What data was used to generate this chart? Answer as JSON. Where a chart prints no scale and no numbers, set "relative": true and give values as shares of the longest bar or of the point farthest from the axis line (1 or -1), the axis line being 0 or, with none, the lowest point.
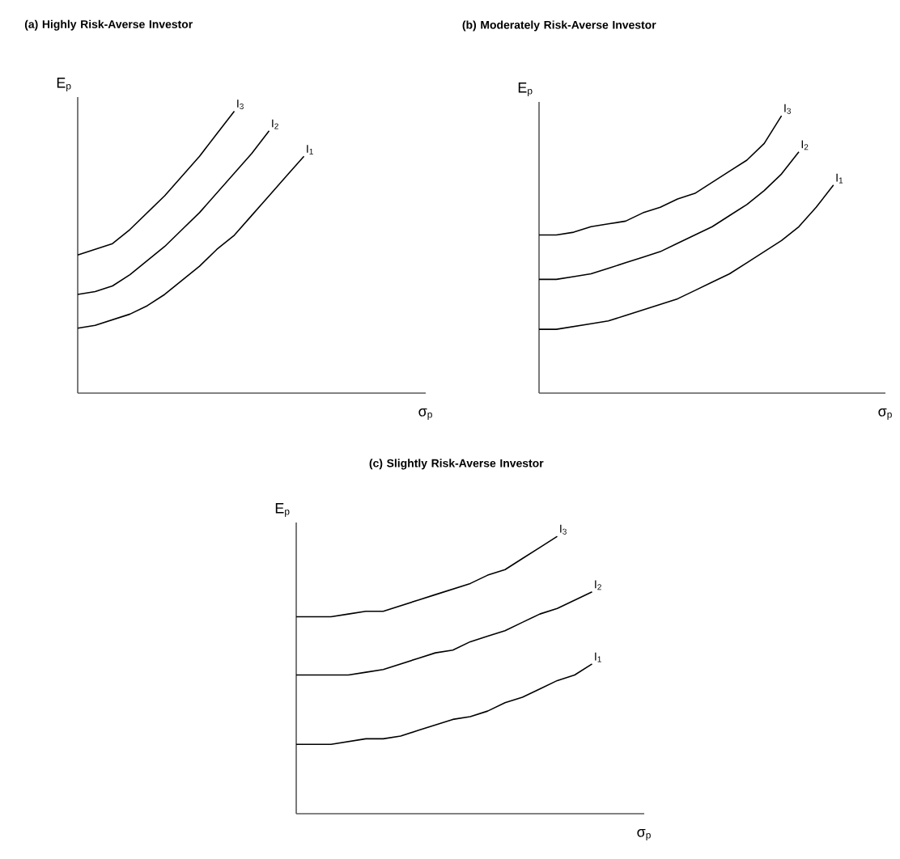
{
  "chart_data": [
    {
      "type": "line",
      "title": "(a) Highly Risk-Averse Investor",
      "xlabel": "σ$_{p}$",
      "ylabel": "E$_{p}$",
      "relative": true,
      "marker": "none",
      "categories": [
        null,
        null,
        null,
        null,
        null,
        null,
        null,
        null,
        null,
        null,
        null,
        null,
        null,
        null,
        null,
        null,
        null,
        null,
        null,
        null,
        null
      ],
      "series": [
        {
          "name": "I$_{3}$",
          "color": "#000000",
          "values": [
            0.49,
            0.51,
            0.53,
            0.58,
            0.64,
            0.7,
            0.77,
            0.84,
            0.92,
            1.0,
            null,
            null,
            null,
            null,
            null,
            null,
            null,
            null,
            null,
            null,
            null
          ]
        },
        {
          "name": "I$_{2}$",
          "color": "#000000",
          "values": [
            0.35,
            0.36,
            0.38,
            0.42,
            0.47,
            0.52,
            0.58,
            0.64,
            0.71,
            0.78,
            0.85,
            0.93,
            null,
            null,
            null,
            null,
            null,
            null,
            null,
            null,
            null
          ]
        },
        {
          "name": "I$_{1}$",
          "color": "#000000",
          "values": [
            0.23,
            0.24,
            0.26,
            0.28,
            0.31,
            0.35,
            0.4,
            0.45,
            0.51,
            0.56,
            0.63,
            0.7,
            0.77,
            0.84,
            null,
            null,
            null,
            null,
            null,
            null,
            null
          ]
        }
      ]
    },
    {
      "type": "line",
      "title": "(b) Moderately Risk-Averse Investor",
      "xlabel": "σ$_{p}$",
      "ylabel": "E$_{p}$",
      "relative": true,
      "marker": "none",
      "categories": [
        null,
        null,
        null,
        null,
        null,
        null,
        null,
        null,
        null,
        null,
        null,
        null,
        null,
        null,
        null,
        null,
        null,
        null,
        null,
        null,
        null
      ],
      "series": [
        {
          "name": "I$_{3}$",
          "color": "#000000",
          "values": [
            0.57,
            0.57,
            0.58,
            0.6,
            0.61,
            0.62,
            0.65,
            0.67,
            0.7,
            0.72,
            0.76,
            0.8,
            0.84,
            0.9,
            1.0,
            null,
            null,
            null,
            null,
            null,
            null
          ]
        },
        {
          "name": "I$_{2}$",
          "color": "#000000",
          "values": [
            0.41,
            0.41,
            0.42,
            0.43,
            0.45,
            0.47,
            0.49,
            0.51,
            0.54,
            0.57,
            0.6,
            0.64,
            0.68,
            0.73,
            0.79,
            0.87,
            null,
            null,
            null,
            null,
            null
          ]
        },
        {
          "name": "I$_{1}$",
          "color": "#000000",
          "values": [
            0.23,
            0.23,
            0.24,
            0.25,
            0.26,
            0.28,
            0.3,
            0.32,
            0.34,
            0.37,
            0.4,
            0.43,
            0.47,
            0.51,
            0.55,
            0.6,
            0.67,
            0.75,
            null,
            null,
            null
          ]
        }
      ]
    },
    {
      "type": "line",
      "title": "(c) Slightly Risk-Averse Investor",
      "xlabel": "σ$_{p}$",
      "ylabel": "E$_{p}$",
      "relative": true,
      "marker": "none",
      "categories": [
        null,
        null,
        null,
        null,
        null,
        null,
        null,
        null,
        null,
        null,
        null,
        null,
        null,
        null,
        null,
        null,
        null,
        null,
        null,
        null,
        null
      ],
      "series": [
        {
          "name": "I$_{3}$",
          "color": "#000000",
          "values": [
            0.71,
            0.71,
            0.71,
            0.72,
            0.73,
            0.73,
            0.75,
            0.77,
            0.79,
            0.81,
            0.83,
            0.86,
            0.88,
            0.92,
            0.96,
            1.0,
            null,
            null,
            null,
            null,
            null
          ]
        },
        {
          "name": "I$_{2}$",
          "color": "#000000",
          "values": [
            0.5,
            0.5,
            0.5,
            0.5,
            0.51,
            0.52,
            0.54,
            0.56,
            0.58,
            0.59,
            0.62,
            0.64,
            0.66,
            0.69,
            0.72,
            0.74,
            0.77,
            0.8,
            null,
            null,
            null
          ]
        },
        {
          "name": "I$_{1}$",
          "color": "#000000",
          "values": [
            0.25,
            0.25,
            0.25,
            0.26,
            0.27,
            0.27,
            0.28,
            0.3,
            0.32,
            0.34,
            0.35,
            0.37,
            0.4,
            0.42,
            0.45,
            0.48,
            0.5,
            0.54,
            null,
            null,
            null
          ]
        }
      ]
    }
  ]
}
